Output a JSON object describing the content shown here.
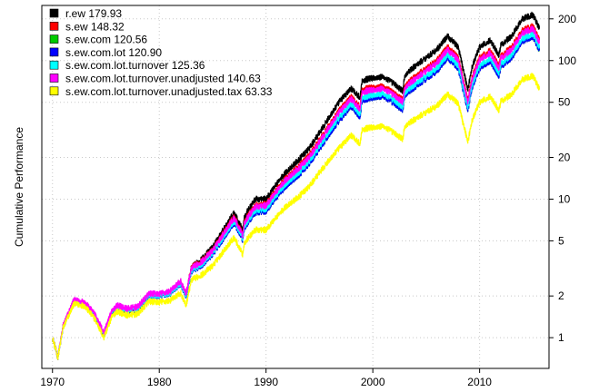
{
  "chart_data": {
    "type": "line",
    "title": "",
    "xlabel": "",
    "ylabel": "Cumulative Performance",
    "y_scale": "log",
    "xlim": [
      1969,
      2016.5
    ],
    "ylim": [
      0.6,
      250
    ],
    "x_ticks": [
      1970,
      1980,
      1990,
      2000,
      2010
    ],
    "x_tick_labels": [
      "1970",
      "1980",
      "1990",
      "2000",
      "2010"
    ],
    "y_ticks": [
      1,
      2,
      5,
      10,
      20,
      50,
      100,
      200
    ],
    "y_tick_labels": [
      "1",
      "2",
      "5",
      "10",
      "20",
      "50",
      "100",
      "200"
    ],
    "y_axis_side": "right",
    "grid": true,
    "legend_position": "top-left",
    "series": [
      {
        "name": "r.ew 179.93",
        "color": "#000000",
        "final_value": 179.93,
        "x": [
          1970,
          1970.5,
          1971,
          1972,
          1973,
          1974,
          1974.8,
          1975.5,
          1976,
          1977,
          1978,
          1979,
          1980,
          1981,
          1982,
          1982.5,
          1983,
          1984,
          1985,
          1986,
          1987,
          1987.8,
          1988,
          1989,
          1990,
          1991,
          1992,
          1993,
          1994,
          1995,
          1996,
          1997,
          1998,
          1998.8,
          1999,
          2000,
          2001,
          2002,
          2002.8,
          2003,
          2004,
          2005,
          2006,
          2007,
          2008,
          2008.9,
          2009.3,
          2010,
          2011,
          2011.8,
          2012,
          2013,
          2014,
          2015,
          2015.6
        ],
        "values": [
          1,
          0.72,
          1.2,
          1.8,
          1.75,
          1.4,
          1.05,
          1.45,
          1.65,
          1.55,
          1.6,
          2.0,
          2.0,
          2.1,
          2.5,
          2.0,
          3.2,
          3.7,
          4.5,
          6.0,
          8.0,
          6.0,
          7.6,
          10,
          10,
          13,
          16,
          19,
          23,
          30,
          40,
          52,
          63,
          54,
          72,
          75,
          76,
          68,
          60,
          78,
          92,
          105,
          120,
          150,
          125,
          62,
          90,
          125,
          140,
          110,
          130,
          150,
          200,
          215,
          170
        ]
      },
      {
        "name": "s.ew 148.32",
        "color": "#ff0000",
        "final_value": 148.32,
        "x": [
          1970,
          1970.5,
          1971,
          1972,
          1973,
          1974,
          1974.8,
          1975.5,
          1976,
          1977,
          1978,
          1979,
          1980,
          1981,
          1982,
          1982.5,
          1983,
          1984,
          1985,
          1986,
          1987,
          1987.8,
          1988,
          1989,
          1990,
          1991,
          1992,
          1993,
          1994,
          1995,
          1996,
          1997,
          1998,
          1998.8,
          1999,
          2000,
          2001,
          2002,
          2002.8,
          2003,
          2004,
          2005,
          2006,
          2007,
          2008,
          2008.9,
          2009.3,
          2010,
          2011,
          2011.8,
          2012,
          2013,
          2014,
          2015,
          2015.6
        ],
        "values": [
          1,
          0.72,
          1.22,
          1.85,
          1.8,
          1.45,
          1.08,
          1.5,
          1.7,
          1.6,
          1.65,
          2.05,
          2.05,
          2.15,
          2.55,
          2.05,
          3.2,
          3.6,
          4.3,
          5.7,
          7.5,
          5.6,
          7.0,
          9.0,
          9.2,
          11.8,
          14.5,
          17,
          20.5,
          26.5,
          35,
          45,
          55,
          46,
          62,
          64,
          65,
          58,
          52,
          66,
          77,
          88,
          100,
          125,
          105,
          52,
          76,
          105,
          118,
          93,
          108,
          125,
          165,
          178,
          140
        ]
      },
      {
        "name": "s.ew.com 120.56",
        "color": "#00cc00",
        "final_value": 120.56,
        "x": [
          1970,
          1970.5,
          1971,
          1972,
          1973,
          1974,
          1974.8,
          1975.5,
          1976,
          1977,
          1978,
          1979,
          1980,
          1981,
          1982,
          1982.5,
          1983,
          1984,
          1985,
          1986,
          1987,
          1987.8,
          1988,
          1989,
          1990,
          1991,
          1992,
          1993,
          1994,
          1995,
          1996,
          1997,
          1998,
          1998.8,
          1999,
          2000,
          2001,
          2002,
          2002.8,
          2003,
          2004,
          2005,
          2006,
          2007,
          2008,
          2008.9,
          2009.3,
          2010,
          2011,
          2011.8,
          2012,
          2013,
          2014,
          2015,
          2015.6
        ],
        "values": [
          1,
          0.72,
          1.2,
          1.82,
          1.77,
          1.42,
          1.06,
          1.47,
          1.67,
          1.57,
          1.62,
          2.0,
          2.0,
          2.08,
          2.45,
          1.97,
          3.0,
          3.35,
          4.0,
          5.2,
          6.8,
          5.1,
          6.3,
          8.0,
          8.2,
          10.4,
          12.7,
          14.8,
          17.8,
          23,
          30,
          38,
          47,
          39,
          52,
          54,
          55,
          49,
          44,
          56,
          65,
          74,
          84,
          105,
          88,
          44,
          64,
          88,
          99,
          78,
          91,
          105,
          138,
          150,
          118
        ]
      },
      {
        "name": "s.ew.com.lot 120.90",
        "color": "#0000ff",
        "final_value": 120.9,
        "x": [
          1970,
          1970.5,
          1971,
          1972,
          1973,
          1974,
          1974.8,
          1975.5,
          1976,
          1977,
          1978,
          1979,
          1980,
          1981,
          1982,
          1982.5,
          1983,
          1984,
          1985,
          1986,
          1987,
          1987.8,
          1988,
          1989,
          1990,
          1991,
          1992,
          1993,
          1994,
          1995,
          1996,
          1997,
          1998,
          1998.8,
          1999,
          2000,
          2001,
          2002,
          2002.8,
          2003,
          2004,
          2005,
          2006,
          2007,
          2008,
          2008.9,
          2009.3,
          2010,
          2011,
          2011.8,
          2012,
          2013,
          2014,
          2015,
          2015.6
        ],
        "values": [
          1,
          0.72,
          1.2,
          1.82,
          1.77,
          1.42,
          1.06,
          1.47,
          1.67,
          1.57,
          1.62,
          2.0,
          2.0,
          2.08,
          2.45,
          1.97,
          3.0,
          3.35,
          4.0,
          5.2,
          6.8,
          5.1,
          6.3,
          8.0,
          8.2,
          10.4,
          12.7,
          14.8,
          17.8,
          23,
          30,
          38,
          47,
          39,
          52,
          54,
          55,
          49,
          44,
          56,
          65,
          74,
          84,
          105,
          88,
          44,
          64,
          88,
          99,
          78,
          91,
          105,
          138,
          150,
          119
        ]
      },
      {
        "name": "s.ew.com.lot.turnover 125.36",
        "color": "#00ffff",
        "final_value": 125.36,
        "x": [
          1970,
          1970.5,
          1971,
          1972,
          1973,
          1974,
          1974.8,
          1975.5,
          1976,
          1977,
          1978,
          1979,
          1980,
          1981,
          1982,
          1982.5,
          1983,
          1984,
          1985,
          1986,
          1987,
          1987.8,
          1988,
          1989,
          1990,
          1991,
          1992,
          1993,
          1994,
          1995,
          1996,
          1997,
          1998,
          1998.8,
          1999,
          2000,
          2001,
          2002,
          2002.8,
          2003,
          2004,
          2005,
          2006,
          2007,
          2008,
          2008.9,
          2009.3,
          2010,
          2011,
          2011.8,
          2012,
          2013,
          2014,
          2015,
          2015.6
        ],
        "values": [
          1,
          0.72,
          1.2,
          1.83,
          1.78,
          1.43,
          1.07,
          1.48,
          1.68,
          1.58,
          1.63,
          2.02,
          2.02,
          2.1,
          2.48,
          2.0,
          3.05,
          3.42,
          4.1,
          5.35,
          7.0,
          5.25,
          6.5,
          8.3,
          8.5,
          10.8,
          13.2,
          15.4,
          18.5,
          24,
          31.5,
          40,
          49,
          41,
          54.5,
          56.5,
          57.5,
          51.5,
          46,
          58.5,
          68,
          77.5,
          88,
          110,
          92,
          46,
          67,
          92,
          104,
          82,
          95,
          110,
          144,
          157,
          124
        ]
      },
      {
        "name": "s.ew.com.lot.turnover.unadjusted 140.63",
        "color": "#ff00ff",
        "final_value": 140.63,
        "x": [
          1970,
          1970.5,
          1971,
          1972,
          1973,
          1974,
          1974.8,
          1975.5,
          1976,
          1977,
          1978,
          1979,
          1980,
          1981,
          1982,
          1982.5,
          1983,
          1984,
          1985,
          1986,
          1987,
          1987.8,
          1988,
          1989,
          1990,
          1991,
          1992,
          1993,
          1994,
          1995,
          1996,
          1997,
          1998,
          1998.8,
          1999,
          2000,
          2001,
          2002,
          2002.8,
          2003,
          2004,
          2005,
          2006,
          2007,
          2008,
          2008.9,
          2009.3,
          2010,
          2011,
          2011.8,
          2012,
          2013,
          2014,
          2015,
          2015.6
        ],
        "values": [
          1,
          0.72,
          1.22,
          1.86,
          1.81,
          1.46,
          1.09,
          1.51,
          1.72,
          1.62,
          1.67,
          2.07,
          2.07,
          2.16,
          2.56,
          2.06,
          3.15,
          3.55,
          4.25,
          5.6,
          7.35,
          5.5,
          6.85,
          8.8,
          9.0,
          11.5,
          14.1,
          16.5,
          19.8,
          25.7,
          34,
          43.5,
          53,
          44.5,
          59.5,
          61.5,
          62.5,
          56,
          50,
          63.5,
          74,
          84.5,
          96,
          120,
          101,
          50,
          73,
          101,
          113,
          89,
          104,
          120,
          158,
          171,
          134
        ]
      },
      {
        "name": "s.ew.com.lot.turnover.unadjusted.tax  63.33",
        "color": "#ffff00",
        "final_value": 63.33,
        "x": [
          1970,
          1970.5,
          1971,
          1972,
          1973,
          1974,
          1974.8,
          1975.5,
          1976,
          1977,
          1978,
          1979,
          1980,
          1981,
          1982,
          1982.5,
          1983,
          1984,
          1985,
          1986,
          1987,
          1987.8,
          1988,
          1989,
          1990,
          1991,
          1992,
          1993,
          1994,
          1995,
          1996,
          1997,
          1998,
          1998.8,
          1999,
          2000,
          2001,
          2002,
          2002.8,
          2003,
          2004,
          2005,
          2006,
          2007,
          2008,
          2008.9,
          2009.3,
          2010,
          2011,
          2011.8,
          2012,
          2013,
          2014,
          2015,
          2015.6
        ],
        "values": [
          1,
          0.72,
          1.18,
          1.75,
          1.7,
          1.35,
          1.0,
          1.38,
          1.55,
          1.45,
          1.48,
          1.82,
          1.8,
          1.85,
          2.1,
          1.7,
          2.6,
          2.85,
          3.3,
          4.2,
          5.3,
          4.0,
          4.9,
          6.0,
          6.0,
          7.5,
          9.0,
          10.3,
          12.2,
          15.5,
          19.5,
          24,
          29,
          25,
          32,
          33,
          33.5,
          30,
          27,
          33.5,
          38,
          42.5,
          47,
          57,
          49,
          26,
          37,
          50,
          55,
          44,
          51,
          57,
          73,
          78,
          62
        ]
      }
    ]
  }
}
